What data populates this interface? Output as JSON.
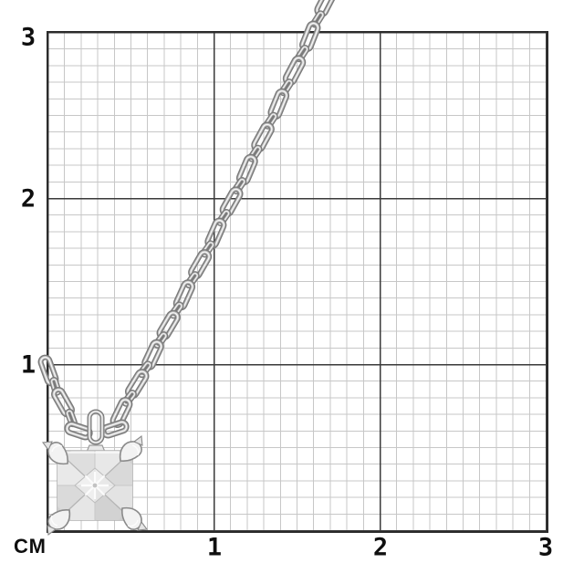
{
  "ruler": {
    "unit_label": "СМ",
    "y_tick_labels": [
      "3",
      "2",
      "1"
    ],
    "x_tick_labels": [
      "1",
      "2",
      "3"
    ]
  },
  "product": {
    "description": "silver cable chain necklace with square princess-cut stone pendant in four-prong setting"
  },
  "palette": {
    "background": "#ffffff",
    "grid_minor": "#c7c7c7",
    "grid_major": "#3a3a3a",
    "grid_border": "#2b2b2b",
    "label": "#0f0f0f",
    "metal_dark": "#7a7a7a",
    "metal_mid": "#bdbdbd",
    "metal_light": "#f6f6f6",
    "stone_base": "#eaeaea",
    "stone_edge": "#b0b0b0"
  }
}
